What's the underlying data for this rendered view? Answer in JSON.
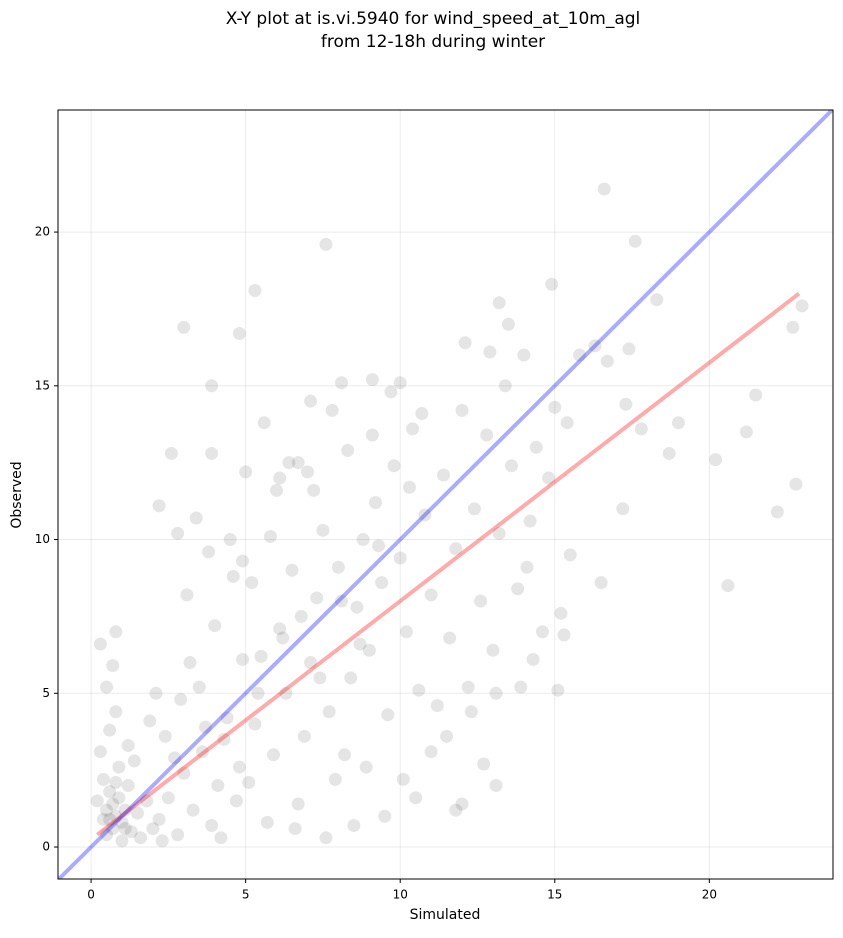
{
  "chart_data": {
    "type": "scatter",
    "title": [
      "X-Y plot at is.vi.5940 for wind_speed_at_10m_agl",
      "from 12-18h during winter"
    ],
    "xlabel": "Simulated",
    "ylabel": "Observed",
    "xlim": [
      -1.07,
      24.0
    ],
    "ylim": [
      -1.04,
      23.97
    ],
    "xticks": [
      0,
      5,
      10,
      15,
      20
    ],
    "yticks": [
      0,
      5,
      10,
      15,
      20
    ],
    "grid": true,
    "series": [
      {
        "type": "scatter",
        "color": "#000000",
        "alpha": 0.1,
        "x": [
          0.5,
          0.6,
          0.7,
          0.8,
          0.9,
          0.6,
          1.0,
          1.1,
          0.7,
          0.4,
          1.2,
          1.3,
          0.5,
          0.9,
          1.5,
          1.6,
          0.3,
          0.6,
          0.8,
          0.5,
          0.7,
          1.4,
          1.8,
          2.0,
          0.2,
          1.0,
          1.2,
          0.4,
          0.8,
          1.1,
          2.2,
          2.5,
          2.8,
          3.0,
          3.3,
          3.6,
          3.9,
          4.1,
          4.4,
          4.7,
          2.4,
          2.9,
          3.2,
          3.5,
          4.0,
          4.3,
          4.6,
          2.1,
          2.7,
          3.8,
          4.9,
          4.5,
          3.4,
          2.8,
          1.9,
          4.2,
          3.1,
          3.7,
          4.8,
          2.3,
          5.1,
          5.3,
          5.5,
          5.7,
          5.9,
          6.1,
          6.3,
          6.5,
          6.7,
          6.9,
          7.1,
          7.3,
          7.5,
          7.7,
          7.9,
          5.2,
          5.8,
          6.0,
          6.4,
          7.0,
          7.2,
          7.8,
          5.6,
          6.2,
          6.8,
          7.4,
          5.4,
          6.6,
          7.6,
          8.0,
          5.0,
          4.9,
          8.2,
          8.4,
          8.6,
          8.8,
          9.0,
          9.2,
          9.4,
          9.6,
          9.8,
          10.0,
          10.2,
          10.4,
          10.6,
          10.8,
          11.0,
          8.3,
          8.9,
          9.5,
          10.1,
          10.5,
          9.1,
          8.5,
          11.0,
          10.7,
          9.7,
          8.7,
          9.3,
          10.3,
          11.2,
          8.1,
          11.4,
          11.6,
          11.8,
          12.0,
          12.2,
          12.4,
          12.6,
          12.8,
          13.0,
          13.2,
          13.4,
          13.6,
          13.8,
          14.0,
          14.2,
          14.4,
          14.6,
          14.8,
          15.0,
          12.1,
          12.9,
          13.5,
          11.5,
          12.3,
          13.1,
          14.1,
          15.3,
          15.4,
          15.8,
          12.7,
          16.6,
          7.6,
          17.6,
          5.3,
          3.0,
          4.8,
          14.9,
          13.2,
          18.3,
          23.0,
          22.7,
          20.6,
          16.5,
          22.2,
          22.8,
          20.2,
          21.5,
          21.2,
          17.2,
          2.2,
          0.3,
          0.8,
          13.1,
          12.0,
          11.8,
          15.1,
          3.9,
          3.9,
          2.6,
          19.0,
          17.8,
          18.7,
          17.3,
          17.4,
          16.7,
          16.3,
          15.5,
          15.2,
          13.9,
          14.3,
          9.1,
          8.1,
          10.0,
          7.1,
          6.7,
          6.1
        ],
        "y": [
          1.2,
          0.9,
          1.4,
          1.0,
          1.6,
          1.8,
          0.8,
          1.2,
          0.6,
          2.2,
          2.0,
          0.5,
          0.4,
          2.6,
          1.1,
          0.3,
          3.1,
          3.8,
          4.4,
          5.2,
          5.9,
          2.8,
          1.5,
          0.6,
          1.5,
          0.2,
          3.3,
          0.9,
          2.1,
          0.6,
          0.9,
          1.6,
          0.4,
          2.4,
          1.2,
          3.1,
          0.7,
          2.0,
          4.2,
          1.5,
          3.6,
          4.8,
          6.0,
          5.2,
          7.2,
          3.5,
          8.8,
          5.0,
          2.9,
          9.6,
          6.1,
          10.0,
          10.7,
          10.2,
          4.1,
          0.3,
          8.2,
          3.9,
          2.6,
          0.2,
          2.1,
          4.0,
          6.2,
          0.8,
          3.0,
          7.1,
          5.0,
          9.0,
          1.4,
          3.6,
          6.0,
          8.1,
          10.3,
          4.4,
          2.2,
          8.6,
          10.1,
          11.6,
          12.5,
          12.2,
          11.6,
          14.2,
          13.8,
          6.8,
          7.5,
          5.5,
          5.0,
          0.6,
          0.3,
          9.1,
          12.2,
          9.3,
          3.0,
          5.5,
          7.8,
          10.0,
          6.4,
          11.2,
          8.6,
          4.3,
          12.4,
          9.4,
          7.0,
          13.6,
          5.1,
          10.8,
          8.2,
          12.9,
          2.6,
          1.0,
          2.2,
          1.6,
          13.4,
          0.7,
          3.1,
          14.1,
          14.8,
          6.6,
          9.8,
          11.7,
          4.6,
          8.0,
          12.1,
          6.8,
          9.7,
          14.2,
          5.2,
          11.0,
          8.0,
          13.4,
          6.4,
          10.2,
          15.0,
          12.4,
          8.4,
          16.0,
          10.6,
          13.0,
          7.0,
          12.0,
          14.3,
          16.4,
          16.1,
          17.0,
          3.6,
          4.4,
          5.0,
          9.1,
          6.9,
          13.8,
          16.0,
          2.7,
          21.4,
          19.6,
          19.7,
          18.1,
          16.9,
          16.7,
          18.3,
          17.7,
          17.8,
          17.6,
          16.9,
          8.5,
          8.6,
          10.9,
          11.8,
          12.6,
          14.7,
          13.5,
          11.0,
          11.1,
          6.6,
          7.0,
          2.0,
          1.4,
          1.2,
          5.1,
          15.0,
          12.8,
          12.8,
          13.8,
          13.6,
          12.8,
          14.4,
          16.2,
          15.8,
          16.3,
          9.5,
          7.6,
          5.2,
          6.1,
          15.2,
          15.1,
          15.1,
          14.5,
          12.5,
          12.0
        ]
      },
      {
        "type": "line",
        "color": "#ff0000",
        "alpha": 0.33,
        "x": [
          0.2,
          22.9
        ],
        "y": [
          0.4,
          18.0
        ]
      },
      {
        "type": "line",
        "color": "#0000ff",
        "alpha": 0.33,
        "x": [
          -1.07,
          24.0
        ],
        "y": [
          -1.07,
          24.0
        ]
      }
    ]
  }
}
